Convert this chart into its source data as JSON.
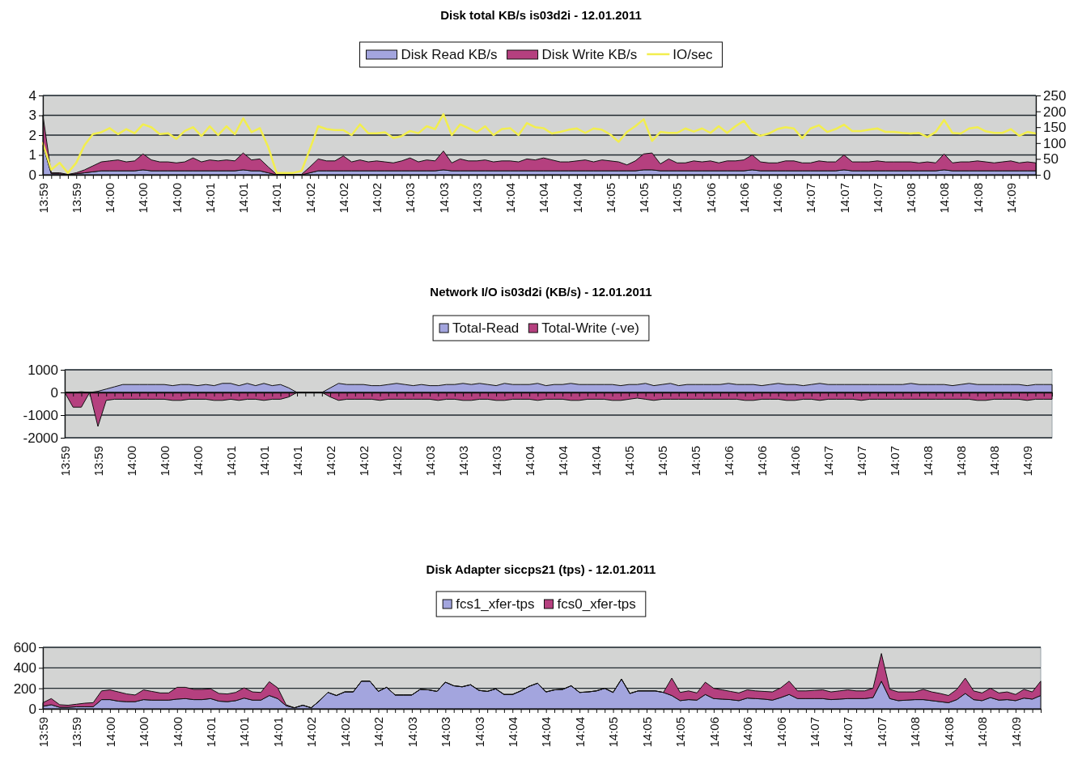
{
  "chart_data": [
    {
      "type": "area",
      "title": "Disk total KB/s is03d2i - 12.01.2011",
      "stacked": true,
      "legend": "top",
      "grid": "y",
      "categories": [
        "13:59",
        null,
        null,
        null,
        "13:59",
        null,
        null,
        null,
        "14:00",
        null,
        null,
        null,
        "14:00",
        null,
        null,
        null,
        "14:00",
        null,
        null,
        null,
        "14:01",
        null,
        null,
        null,
        "14:01",
        null,
        null,
        null,
        "14:01",
        null,
        null,
        null,
        "14:02",
        null,
        null,
        null,
        "14:02",
        null,
        null,
        null,
        "14:02",
        null,
        null,
        null,
        "14:03",
        null,
        null,
        null,
        "14:03",
        null,
        null,
        null,
        "14:03",
        null,
        null,
        null,
        "14:04",
        null,
        null,
        null,
        "14:04",
        null,
        null,
        null,
        "14:04",
        null,
        null,
        null,
        "14:05",
        null,
        null,
        null,
        "14:05",
        null,
        null,
        null,
        "14:05",
        null,
        null,
        null,
        "14:06",
        null,
        null,
        null,
        "14:06",
        null,
        null,
        null,
        "14:06",
        null,
        null,
        null,
        "14:07",
        null,
        null,
        null,
        "14:07",
        null,
        null,
        null,
        "14:07",
        null,
        null,
        null,
        "14:08",
        null,
        null,
        null,
        "14:08",
        null,
        null,
        null,
        "14:08",
        null,
        null,
        null,
        "14:09",
        null,
        null,
        null
      ],
      "ylim": [
        0,
        4
      ],
      "yticks": [
        0,
        1,
        2,
        3,
        4
      ],
      "y2lim": [
        0,
        250
      ],
      "y2ticks": [
        0,
        50,
        100,
        150,
        200,
        250
      ],
      "series": [
        {
          "name": "Disk Read KB/s",
          "color": "#a3a5de",
          "values": [
            1.5,
            0.05,
            0.05,
            0,
            0.05,
            0.1,
            0.15,
            0.2,
            0.2,
            0.2,
            0.2,
            0.2,
            0.25,
            0.2,
            0.2,
            0.2,
            0.2,
            0.2,
            0.2,
            0.2,
            0.2,
            0.2,
            0.2,
            0.2,
            0.25,
            0.2,
            0.2,
            0.1,
            0,
            0,
            0,
            0,
            0.1,
            0.2,
            0.2,
            0.2,
            0.2,
            0.2,
            0.2,
            0.2,
            0.2,
            0.2,
            0.2,
            0.2,
            0.2,
            0.2,
            0.2,
            0.2,
            0.25,
            0.2,
            0.2,
            0.2,
            0.2,
            0.2,
            0.2,
            0.2,
            0.2,
            0.2,
            0.2,
            0.2,
            0.2,
            0.2,
            0.2,
            0.2,
            0.2,
            0.2,
            0.2,
            0.2,
            0.2,
            0.2,
            0.2,
            0.2,
            0.25,
            0.25,
            0.2,
            0.2,
            0.2,
            0.2,
            0.2,
            0.2,
            0.2,
            0.2,
            0.2,
            0.2,
            0.2,
            0.25,
            0.2,
            0.2,
            0.2,
            0.2,
            0.2,
            0.2,
            0.2,
            0.2,
            0.2,
            0.2,
            0.25,
            0.2,
            0.2,
            0.2,
            0.2,
            0.2,
            0.2,
            0.2,
            0.2,
            0.2,
            0.2,
            0.2,
            0.25,
            0.2,
            0.2,
            0.2,
            0.2,
            0.2,
            0.2,
            0.2,
            0.2,
            0.2,
            0.2,
            0.2
          ]
        },
        {
          "name": "Disk Write KB/s",
          "color": "#b5407f",
          "values": [
            1.5,
            0.05,
            0.05,
            0.02,
            0.05,
            0.15,
            0.3,
            0.45,
            0.5,
            0.55,
            0.45,
            0.5,
            0.8,
            0.55,
            0.45,
            0.45,
            0.4,
            0.45,
            0.65,
            0.45,
            0.55,
            0.5,
            0.55,
            0.5,
            0.85,
            0.55,
            0.6,
            0.3,
            0.02,
            0.02,
            0.02,
            0.02,
            0.3,
            0.6,
            0.5,
            0.5,
            0.75,
            0.45,
            0.55,
            0.45,
            0.5,
            0.45,
            0.4,
            0.5,
            0.65,
            0.45,
            0.55,
            0.5,
            0.95,
            0.4,
            0.6,
            0.5,
            0.5,
            0.55,
            0.45,
            0.5,
            0.5,
            0.45,
            0.6,
            0.55,
            0.65,
            0.55,
            0.45,
            0.45,
            0.5,
            0.55,
            0.45,
            0.55,
            0.5,
            0.45,
            0.3,
            0.5,
            0.8,
            0.85,
            0.35,
            0.6,
            0.4,
            0.4,
            0.5,
            0.45,
            0.5,
            0.4,
            0.5,
            0.5,
            0.55,
            0.75,
            0.45,
            0.4,
            0.4,
            0.5,
            0.5,
            0.4,
            0.4,
            0.5,
            0.45,
            0.45,
            0.75,
            0.45,
            0.45,
            0.45,
            0.5,
            0.45,
            0.45,
            0.45,
            0.45,
            0.4,
            0.45,
            0.4,
            0.8,
            0.4,
            0.45,
            0.45,
            0.5,
            0.45,
            0.4,
            0.45,
            0.5,
            0.4,
            0.45,
            0.4
          ]
        },
        {
          "name": "IO/sec",
          "type": "line",
          "axis": "y2",
          "color": "#f2ee4e",
          "values": [
            100,
            16,
            38,
            6,
            38,
            94,
            128,
            134,
            147,
            128,
            144,
            131,
            159,
            150,
            128,
            131,
            113,
            138,
            150,
            122,
            153,
            125,
            153,
            128,
            178,
            134,
            147,
            88,
            6,
            6,
            6,
            12,
            81,
            153,
            144,
            141,
            141,
            125,
            159,
            131,
            131,
            134,
            116,
            122,
            138,
            131,
            153,
            144,
            191,
            125,
            159,
            147,
            134,
            153,
            125,
            144,
            147,
            125,
            163,
            150,
            147,
            130,
            135,
            142,
            146,
            132,
            146,
            142,
            127,
            104,
            135,
            153,
            175,
            107,
            135,
            132,
            132,
            146,
            136,
            146,
            132,
            153,
            132,
            153,
            170,
            135,
            123,
            130,
            144,
            150,
            146,
            115,
            146,
            156,
            135,
            144,
            158,
            138,
            138,
            142,
            146,
            135,
            135,
            132,
            130,
            132,
            119,
            135,
            173,
            132,
            130,
            146,
            150,
            137,
            132,
            132,
            144,
            123,
            135,
            130
          ]
        }
      ]
    },
    {
      "type": "area",
      "title": "Network I/O is03d2i (KB/s) - 12.01.2011",
      "legend": "top",
      "grid": "y",
      "categories": [
        "13:59",
        null,
        null,
        null,
        "13:59",
        null,
        null,
        null,
        "14:00",
        null,
        null,
        null,
        "14:00",
        null,
        null,
        null,
        "14:00",
        null,
        null,
        null,
        "14:01",
        null,
        null,
        null,
        "14:01",
        null,
        null,
        null,
        "14:01",
        null,
        null,
        null,
        "14:02",
        null,
        null,
        null,
        "14:02",
        null,
        null,
        null,
        "14:02",
        null,
        null,
        null,
        "14:03",
        null,
        null,
        null,
        "14:03",
        null,
        null,
        null,
        "14:03",
        null,
        null,
        null,
        "14:04",
        null,
        null,
        null,
        "14:04",
        null,
        null,
        null,
        "14:04",
        null,
        null,
        null,
        "14:05",
        null,
        null,
        null,
        "14:05",
        null,
        null,
        null,
        "14:05",
        null,
        null,
        null,
        "14:06",
        null,
        null,
        null,
        "14:06",
        null,
        null,
        null,
        "14:06",
        null,
        null,
        null,
        "14:07",
        null,
        null,
        null,
        "14:07",
        null,
        null,
        null,
        "14:07",
        null,
        null,
        null,
        "14:08",
        null,
        null,
        null,
        "14:08",
        null,
        null,
        null,
        "14:08",
        null,
        null,
        null,
        "14:09",
        null,
        null,
        null
      ],
      "ylim": [
        -2000,
        1000
      ],
      "yticks": [
        -2000,
        -1000,
        0,
        1000
      ],
      "series": [
        {
          "name": "Total-Read",
          "color": "#a3a5de",
          "values": [
            0,
            0,
            30,
            0,
            50,
            150,
            250,
            350,
            350,
            350,
            350,
            350,
            350,
            300,
            350,
            350,
            300,
            350,
            300,
            400,
            400,
            300,
            400,
            300,
            400,
            300,
            350,
            200,
            0,
            0,
            0,
            0,
            200,
            400,
            350,
            350,
            350,
            300,
            300,
            350,
            400,
            350,
            300,
            350,
            300,
            300,
            350,
            350,
            400,
            350,
            400,
            350,
            300,
            400,
            350,
            350,
            350,
            400,
            300,
            350,
            350,
            400,
            350,
            350,
            350,
            350,
            350,
            300,
            350,
            350,
            400,
            300,
            350,
            400,
            300,
            350,
            350,
            350,
            350,
            350,
            400,
            350,
            350,
            350,
            300,
            350,
            400,
            350,
            350,
            300,
            350,
            400,
            350,
            350,
            350,
            350,
            350,
            350,
            350,
            350,
            350,
            350,
            400,
            350,
            350,
            350,
            350,
            300,
            350,
            400,
            350,
            350,
            350,
            350,
            350,
            350,
            300,
            350,
            350,
            350
          ]
        },
        {
          "name": "Total-Write (-ve)",
          "color": "#b5407f",
          "values": [
            0,
            -650,
            -650,
            0,
            -1500,
            -350,
            -300,
            -300,
            -300,
            -300,
            -300,
            -300,
            -300,
            -350,
            -350,
            -300,
            -300,
            -300,
            -350,
            -350,
            -300,
            -350,
            -300,
            -300,
            -350,
            -300,
            -300,
            -200,
            0,
            0,
            0,
            0,
            -200,
            -350,
            -300,
            -300,
            -300,
            -300,
            -350,
            -300,
            -300,
            -300,
            -300,
            -300,
            -300,
            -350,
            -300,
            -300,
            -350,
            -350,
            -300,
            -300,
            -350,
            -350,
            -300,
            -300,
            -300,
            -350,
            -300,
            -300,
            -300,
            -350,
            -350,
            -300,
            -300,
            -300,
            -350,
            -350,
            -300,
            -250,
            -300,
            -350,
            -300,
            -300,
            -300,
            -300,
            -300,
            -300,
            -300,
            -300,
            -300,
            -300,
            -350,
            -350,
            -300,
            -300,
            -300,
            -350,
            -350,
            -300,
            -300,
            -350,
            -300,
            -300,
            -300,
            -300,
            -350,
            -300,
            -300,
            -300,
            -300,
            -300,
            -300,
            -300,
            -300,
            -300,
            -300,
            -300,
            -300,
            -300,
            -350,
            -350,
            -300,
            -300,
            -300,
            -300,
            -350,
            -300,
            -300,
            -300
          ]
        }
      ]
    },
    {
      "type": "area",
      "title": "Disk Adapter siccps21 (tps) - 12.01.2011",
      "stacked": true,
      "legend": "top",
      "grid": "y",
      "categories": [
        "13:59",
        null,
        null,
        null,
        "13:59",
        null,
        null,
        null,
        "14:00",
        null,
        null,
        null,
        "14:00",
        null,
        null,
        null,
        "14:00",
        null,
        null,
        null,
        "14:01",
        null,
        null,
        null,
        "14:01",
        null,
        null,
        null,
        "14:01",
        null,
        null,
        null,
        "14:02",
        null,
        null,
        null,
        "14:02",
        null,
        null,
        null,
        "14:02",
        null,
        null,
        null,
        "14:03",
        null,
        null,
        null,
        "14:03",
        null,
        null,
        null,
        "14:03",
        null,
        null,
        null,
        "14:04",
        null,
        null,
        null,
        "14:04",
        null,
        null,
        null,
        "14:04",
        null,
        null,
        null,
        "14:05",
        null,
        null,
        null,
        "14:05",
        null,
        null,
        null,
        "14:05",
        null,
        null,
        null,
        "14:06",
        null,
        null,
        null,
        "14:06",
        null,
        null,
        null,
        "14:06",
        null,
        null,
        null,
        "14:07",
        null,
        null,
        null,
        "14:07",
        null,
        null,
        null,
        "14:07",
        null,
        null,
        null,
        "14:08",
        null,
        null,
        null,
        "14:08",
        null,
        null,
        null,
        "14:08",
        null,
        null,
        null,
        "14:09",
        null,
        null,
        null
      ],
      "ylim": [
        0,
        600
      ],
      "yticks": [
        0,
        200,
        400,
        600
      ],
      "series": [
        {
          "name": "fcs1_xfer-tps",
          "color": "#a3a5de",
          "values": [
            25,
            40,
            15,
            15,
            20,
            20,
            20,
            90,
            90,
            75,
            70,
            70,
            90,
            85,
            85,
            85,
            95,
            100,
            90,
            90,
            100,
            75,
            70,
            80,
            105,
            85,
            85,
            130,
            100,
            30,
            10,
            35,
            10,
            80,
            160,
            130,
            165,
            165,
            270,
            270,
            170,
            210,
            135,
            135,
            135,
            190,
            185,
            170,
            260,
            225,
            215,
            235,
            180,
            170,
            195,
            140,
            140,
            175,
            220,
            250,
            165,
            185,
            190,
            225,
            160,
            165,
            175,
            200,
            160,
            290,
            150,
            175,
            175,
            175,
            160,
            130,
            80,
            90,
            85,
            140,
            100,
            95,
            90,
            80,
            105,
            100,
            95,
            85,
            110,
            140,
            100,
            100,
            100,
            100,
            90,
            95,
            100,
            100,
            100,
            110,
            270,
            100,
            80,
            85,
            90,
            90,
            80,
            70,
            60,
            90,
            150,
            90,
            80,
            110,
            85,
            90,
            80,
            105,
            95,
            130
          ]
        },
        {
          "name": "fcs0_xfer-tps",
          "color": "#b5407f",
          "values": [
            35,
            60,
            25,
            20,
            25,
            35,
            40,
            85,
            95,
            90,
            75,
            65,
            95,
            85,
            70,
            70,
            115,
            110,
            100,
            100,
            95,
            75,
            75,
            80,
            100,
            80,
            75,
            135,
            105,
            10,
            0,
            0,
            0,
            0,
            0,
            0,
            0,
            0,
            0,
            0,
            0,
            0,
            0,
            0,
            0,
            0,
            0,
            0,
            0,
            0,
            0,
            0,
            0,
            0,
            0,
            0,
            0,
            0,
            0,
            0,
            0,
            0,
            0,
            0,
            0,
            0,
            0,
            0,
            0,
            0,
            0,
            0,
            0,
            0,
            0,
            170,
            80,
            85,
            70,
            120,
            100,
            90,
            80,
            75,
            80,
            75,
            75,
            80,
            95,
            130,
            75,
            75,
            80,
            85,
            75,
            80,
            85,
            75,
            75,
            90,
            270,
            90,
            85,
            80,
            75,
            100,
            85,
            80,
            70,
            100,
            150,
            85,
            75,
            90,
            70,
            75,
            60,
            85,
            70,
            140
          ]
        }
      ]
    }
  ]
}
